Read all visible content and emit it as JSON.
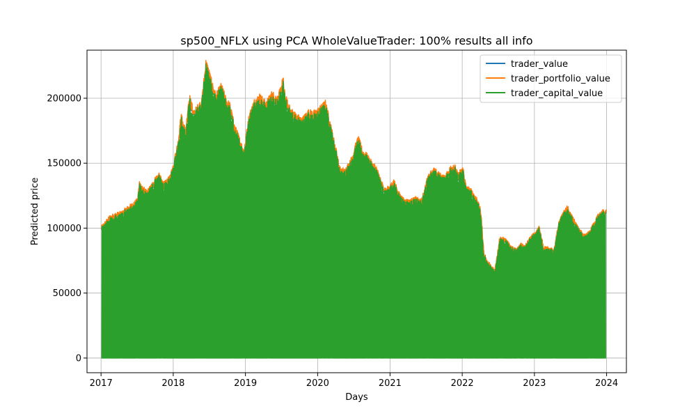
{
  "chart_data": {
    "type": "line",
    "title": "sp500_NFLX using PCA WholeValueTrader: 100% results all info",
    "xlabel": "Days",
    "ylabel": "Predicted price",
    "xlim": [
      "2016-10-22",
      "2024-04-10"
    ],
    "ylim": [
      -11300,
      237000
    ],
    "x_ticks": [
      "2017",
      "2018",
      "2019",
      "2020",
      "2021",
      "2022",
      "2023",
      "2024"
    ],
    "x_tick_dates": [
      "2017-01-01",
      "2018-01-01",
      "2019-01-01",
      "2020-01-01",
      "2021-01-01",
      "2022-01-01",
      "2023-01-01",
      "2024-01-01"
    ],
    "y_ticks": [
      0,
      50000,
      100000,
      150000,
      200000
    ],
    "y_tick_labels": [
      "0",
      "50000",
      "100000",
      "150000",
      "200000"
    ],
    "grid": true,
    "legend_position": "top-right",
    "colors": {
      "trader_value": "#1f77b4",
      "trader_portfolio_value": "#ff7f0e",
      "trader_capital_value": "#2ca02c",
      "grid": "#b0b0b0"
    },
    "series": [
      {
        "name": "trader_portfolio_value",
        "x": [
          "2017-01-03",
          "2017-01-20",
          "2017-02-15",
          "2017-03-15",
          "2017-04-15",
          "2017-05-15",
          "2017-06-15",
          "2017-07-05",
          "2017-07-15",
          "2017-07-25",
          "2017-08-20",
          "2017-09-15",
          "2017-10-05",
          "2017-10-20",
          "2017-11-15",
          "2017-12-15",
          "2018-01-05",
          "2018-01-25",
          "2018-02-10",
          "2018-03-05",
          "2018-03-25",
          "2018-04-15",
          "2018-05-05",
          "2018-05-25",
          "2018-06-15",
          "2018-06-25",
          "2018-07-15",
          "2018-08-05",
          "2018-09-01",
          "2018-09-25",
          "2018-10-15",
          "2018-11-05",
          "2018-11-25",
          "2018-12-24",
          "2019-01-20",
          "2019-02-15",
          "2019-03-15",
          "2019-04-15",
          "2019-05-15",
          "2019-06-15",
          "2019-07-10",
          "2019-07-20",
          "2019-08-15",
          "2019-09-15",
          "2019-10-15",
          "2019-11-15",
          "2019-12-15",
          "2020-01-10",
          "2020-02-10",
          "2020-03-15",
          "2020-04-05",
          "2020-04-20",
          "2020-05-15",
          "2020-06-15",
          "2020-07-10",
          "2020-07-25",
          "2020-08-15",
          "2020-09-05",
          "2020-10-05",
          "2020-10-25",
          "2020-11-15",
          "2020-12-10",
          "2021-01-05",
          "2021-01-20",
          "2021-02-10",
          "2021-03-10",
          "2021-04-10",
          "2021-05-10",
          "2021-06-10",
          "2021-07-10",
          "2021-08-10",
          "2021-09-10",
          "2021-10-05",
          "2021-11-05",
          "2021-11-20",
          "2021-12-10",
          "2022-01-05",
          "2022-01-21",
          "2022-02-15",
          "2022-03-15",
          "2022-04-05",
          "2022-04-21",
          "2022-05-15",
          "2022-06-15",
          "2022-07-10",
          "2022-08-05",
          "2022-08-25",
          "2022-09-15",
          "2022-10-05",
          "2022-10-25",
          "2022-11-15",
          "2022-12-10",
          "2023-01-05",
          "2023-01-25",
          "2023-02-15",
          "2023-03-15",
          "2023-04-10",
          "2023-05-05",
          "2023-05-25",
          "2023-06-15",
          "2023-07-10",
          "2023-07-25",
          "2023-08-15",
          "2023-09-10",
          "2023-10-05",
          "2023-10-25",
          "2023-11-15",
          "2023-12-10",
          "2023-12-29"
        ],
        "values": [
          100000,
          103000,
          108000,
          110000,
          111000,
          115000,
          118000,
          121000,
          136000,
          130000,
          127000,
          132000,
          138000,
          140000,
          133000,
          138000,
          150000,
          165000,
          185000,
          173000,
          200000,
          187000,
          192000,
          196000,
          226000,
          222000,
          210000,
          200000,
          208000,
          197000,
          193000,
          178000,
          170000,
          158000,
          185000,
          196000,
          200000,
          194000,
          202000,
          198000,
          213000,
          200000,
          190000,
          185000,
          182000,
          188000,
          187000,
          190000,
          195000,
          172000,
          158000,
          145000,
          143000,
          150000,
          162000,
          168000,
          158000,
          155000,
          148000,
          145000,
          135000,
          128000,
          132000,
          136000,
          127000,
          121000,
          120000,
          122000,
          120000,
          138000,
          144000,
          140000,
          138000,
          146000,
          148000,
          140000,
          145000,
          130000,
          128000,
          122000,
          112000,
          79000,
          72000,
          67000,
          92000,
          91000,
          87000,
          84000,
          83000,
          87000,
          85000,
          92000,
          95000,
          100000,
          85000,
          84000,
          82000,
          104000,
          110000,
          115000,
          108000,
          104000,
          98000,
          93000,
          96000,
          102000,
          108000,
          112000,
          112000
        ]
      }
    ],
    "notes_series_overlap": "trader_value overlaps trader_portfolio_value; trader_capital_value drops to 0 frequently, forming dense green fill"
  },
  "legend": {
    "items": [
      {
        "label": "trader_value",
        "color": "#1f77b4"
      },
      {
        "label": "trader_portfolio_value",
        "color": "#ff7f0e"
      },
      {
        "label": "trader_capital_value",
        "color": "#2ca02c"
      }
    ]
  }
}
